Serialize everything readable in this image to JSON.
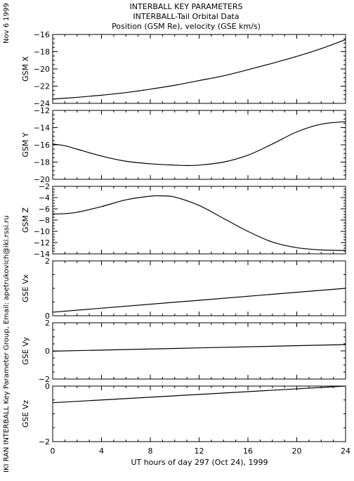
{
  "header": {
    "line1": "INTERBALL KEY PARAMETERS",
    "line2": "INTERBALL-Tail Orbital Data",
    "line3": "Position (GSM Re), velocity (GSE km/s)"
  },
  "side": {
    "date": "Nov  6 1999",
    "credit": "IKI RAN INTERBALL Key Parameter Group, Email: apetrukovich@iki.rssi.ru"
  },
  "chart_data": [
    {
      "type": "line",
      "ylabel": "GSM X",
      "xlim": [
        0,
        24
      ],
      "ylim": [
        -24,
        -16
      ],
      "yticks": [
        -24,
        -22,
        -20,
        -18,
        -16
      ],
      "series": [
        {
          "x": [
            0,
            2,
            4,
            6,
            8,
            10,
            12,
            14,
            16,
            18,
            20,
            22,
            24
          ],
          "y": [
            -23.5,
            -23.3,
            -23.05,
            -22.75,
            -22.35,
            -21.9,
            -21.35,
            -20.8,
            -20.1,
            -19.35,
            -18.55,
            -17.65,
            -16.6
          ]
        }
      ]
    },
    {
      "type": "line",
      "ylabel": "GSM Y",
      "xlim": [
        0,
        24
      ],
      "ylim": [
        -20,
        -12
      ],
      "yticks": [
        -20,
        -18,
        -16,
        -14,
        -12
      ],
      "series": [
        {
          "x": [
            0,
            1,
            2,
            4,
            6,
            8,
            10,
            11,
            12,
            14,
            16,
            18,
            20,
            22,
            24
          ],
          "y": [
            -15.9,
            -16.1,
            -16.5,
            -17.3,
            -17.9,
            -18.2,
            -18.35,
            -18.4,
            -18.35,
            -18.0,
            -17.2,
            -15.9,
            -14.5,
            -13.6,
            -13.3
          ]
        }
      ]
    },
    {
      "type": "line",
      "ylabel": "GSM Z",
      "xlim": [
        0,
        24
      ],
      "ylim": [
        -14,
        -2
      ],
      "yticks": [
        -14,
        -12,
        -10,
        -8,
        -6,
        -4,
        -2
      ],
      "series": [
        {
          "x": [
            0,
            1,
            2,
            4,
            6,
            8,
            9,
            10,
            12,
            14,
            16,
            18,
            20,
            22,
            24
          ],
          "y": [
            -6.9,
            -6.85,
            -6.6,
            -5.6,
            -4.4,
            -3.75,
            -3.7,
            -3.9,
            -5.4,
            -7.7,
            -10.0,
            -11.9,
            -12.9,
            -13.3,
            -13.4
          ]
        }
      ]
    },
    {
      "type": "line",
      "ylabel": "GSE Vx",
      "xlim": [
        0,
        24
      ],
      "ylim": [
        0,
        2
      ],
      "yticks": [
        0,
        2
      ],
      "series": [
        {
          "x": [
            0,
            24
          ],
          "y": [
            0.13,
            1.0
          ]
        }
      ]
    },
    {
      "type": "line",
      "ylabel": "GSE Vy",
      "xlim": [
        0,
        24
      ],
      "ylim": [
        -2,
        2
      ],
      "yticks": [
        -2,
        0,
        2
      ],
      "series": [
        {
          "x": [
            0,
            24
          ],
          "y": [
            -0.02,
            0.45
          ]
        }
      ]
    },
    {
      "type": "line",
      "ylabel": "GSE Vz",
      "xlim": [
        0,
        24
      ],
      "ylim": [
        -2,
        0
      ],
      "yticks": [
        -2,
        0
      ],
      "series": [
        {
          "x": [
            0,
            24
          ],
          "y": [
            -0.6,
            0.0
          ]
        }
      ]
    }
  ],
  "xaxis": {
    "ticks": [
      0,
      4,
      8,
      12,
      16,
      20,
      24
    ],
    "label": "UT hours of day 297 (Oct 24), 1999"
  }
}
